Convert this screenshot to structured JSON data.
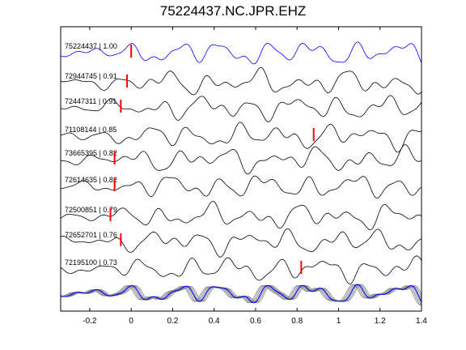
{
  "chart_data": {
    "type": "line",
    "title": "75224437.NC.JPR.EHZ",
    "xlabel": "",
    "ylabel": "",
    "xlim": [
      -0.34,
      1.4
    ],
    "xticks": [
      -0.2,
      0,
      0.2,
      0.4,
      0.6,
      0.8,
      1,
      1.2,
      1.4
    ],
    "xtick_labels": [
      "-0.2",
      "0",
      "0.2",
      "0.4",
      "0.6",
      "0.8",
      "1",
      "1.2",
      "1.4"
    ],
    "grid": false,
    "legend": "none",
    "series": [
      {
        "id": "75224437",
        "label": "75224437 | 1.00",
        "pick_time": 0.0,
        "color": "#0000ff"
      },
      {
        "id": "72944745",
        "label": "72944745 | 0.91",
        "pick_time": -0.02,
        "color": "#000000"
      },
      {
        "id": "72447311",
        "label": "72447311 | 0.91",
        "pick_time": -0.05,
        "color": "#000000"
      },
      {
        "id": "71108144",
        "label": "71108144 | 0.85",
        "pick_time": 0.88,
        "color": "#000000"
      },
      {
        "id": "73665395",
        "label": "73665395 | 0.82",
        "pick_time": -0.08,
        "color": "#000000"
      },
      {
        "id": "72614635",
        "label": "72614635 | 0.82",
        "pick_time": -0.08,
        "color": "#000000"
      },
      {
        "id": "72500851",
        "label": "72500851 | 0.79",
        "pick_time": -0.1,
        "color": "#000000"
      },
      {
        "id": "72652701",
        "label": "72652701 | 0.76",
        "pick_time": -0.05,
        "color": "#000000"
      },
      {
        "id": "72195100",
        "label": "72195100 | 0.73",
        "pick_time": 0.82,
        "color": "#000000"
      }
    ],
    "stack_color": "#888888",
    "pick_color": "#ff0000"
  }
}
